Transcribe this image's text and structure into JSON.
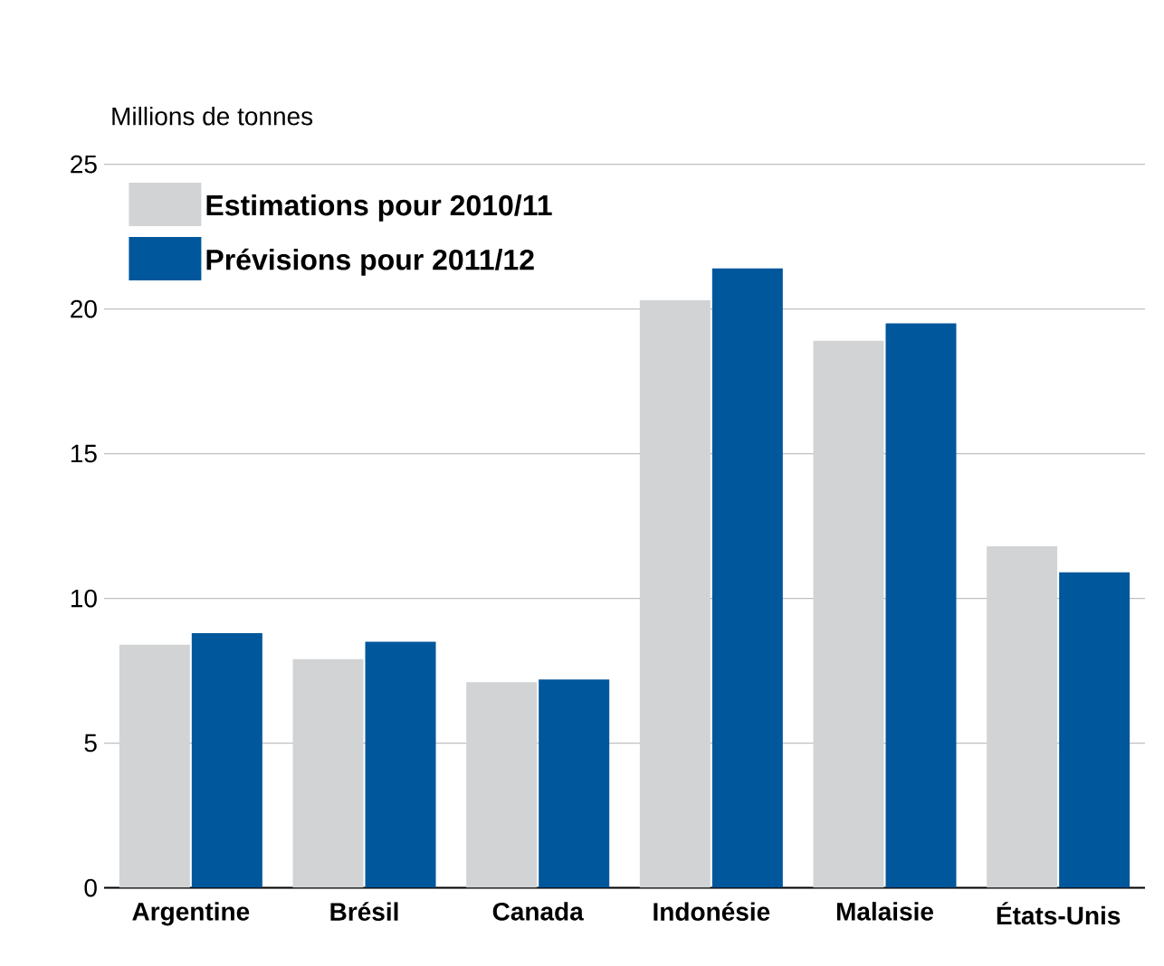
{
  "chart_data": {
    "type": "bar",
    "ylabel": "Millions de tonnes",
    "categories": [
      "Argentine",
      "Brésil",
      "Canada",
      "Indonésie",
      "Malaisie",
      "États-Unis"
    ],
    "series": [
      {
        "name": "Estimations pour 2010/11",
        "color": "#d1d3d4",
        "values": [
          8.4,
          7.9,
          7.1,
          20.3,
          18.9,
          11.8
        ]
      },
      {
        "name": "Prévisions pour 2011/12",
        "color": "#00579c",
        "values": [
          8.8,
          8.5,
          7.2,
          21.4,
          19.5,
          10.9
        ]
      }
    ],
    "ylim": [
      0,
      25
    ],
    "yticks": [
      0,
      5,
      10,
      15,
      20,
      25
    ],
    "grid": "y",
    "legend": "top left"
  }
}
